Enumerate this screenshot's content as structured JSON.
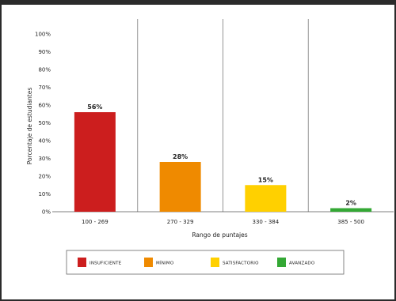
{
  "chart_data": {
    "type": "bar",
    "categories": [
      "100 - 269",
      "270 - 329",
      "330 - 384",
      "385 - 500"
    ],
    "values": [
      56,
      28,
      15,
      2
    ],
    "data_labels": [
      "56%",
      "28%",
      "15%",
      "2%"
    ],
    "xlabel": "Rango de puntajes",
    "ylabel": "Porcentaje de estudiantes",
    "ylim": [
      0,
      100
    ],
    "yticks": [
      "0%",
      "10%",
      "20%",
      "30%",
      "40%",
      "50%",
      "60%",
      "70%",
      "80%",
      "90%",
      "100%"
    ],
    "colors": [
      "#cc1e1e",
      "#ef8a00",
      "#ffd000",
      "#34a835"
    ],
    "grid": false,
    "category_separators": true,
    "legend": {
      "placement": "bottom",
      "items": [
        {
          "label": "INSUFICIENTE",
          "color": "#cc1e1e"
        },
        {
          "label": "MÍNIMO",
          "color": "#ef8a00"
        },
        {
          "label": "SATISFACTORIO",
          "color": "#ffd000"
        },
        {
          "label": "AVANZADO",
          "color": "#34a835"
        }
      ]
    }
  }
}
